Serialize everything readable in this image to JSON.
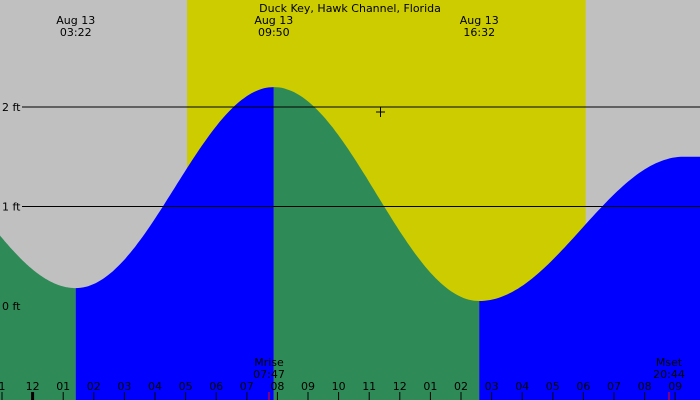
{
  "chart_data": {
    "type": "area",
    "title": "Duck Key, Hawk Channel, Florida",
    "xlabel": "",
    "ylabel": "",
    "xlim": [
      0.9,
      9.9
    ],
    "ylim": [
      -1.0,
      3.0
    ],
    "grid": true,
    "y_ticks": [
      {
        "value": 0,
        "label": "0 ft"
      },
      {
        "value": 1,
        "label": "1 ft"
      },
      {
        "value": 2,
        "label": "2 ft"
      }
    ],
    "hour_ticks": [
      {
        "value": 1,
        "label": "1"
      },
      {
        "value": 2,
        "label": "12"
      },
      {
        "value": 3,
        "label": "01"
      },
      {
        "value": 4,
        "label": "02"
      },
      {
        "value": 5,
        "label": "03"
      },
      {
        "value": 6,
        "label": "04"
      },
      {
        "value": 7,
        "label": "05"
      },
      {
        "value": 8,
        "label": "06"
      },
      {
        "value": 9,
        "label": "07"
      },
      {
        "value": 10,
        "label": "08"
      },
      {
        "value": 11,
        "label": "09"
      },
      {
        "value": 12,
        "label": "10"
      },
      {
        "value": 13,
        "label": "11"
      },
      {
        "value": 14,
        "label": "12"
      },
      {
        "value": 15,
        "label": "01"
      },
      {
        "value": 16,
        "label": "02"
      },
      {
        "value": 17,
        "label": "03"
      },
      {
        "value": 18,
        "label": "04"
      },
      {
        "value": 19,
        "label": "05"
      },
      {
        "value": 20,
        "label": "06"
      },
      {
        "value": 21,
        "label": "07"
      },
      {
        "value": 22,
        "label": "08"
      },
      {
        "value": 23,
        "label": "09"
      }
    ],
    "tide_events": [
      {
        "type": "low",
        "date": "Aug 13",
        "time": "03:22",
        "hour": 3.37,
        "height": 0.18
      },
      {
        "type": "high",
        "date": "Aug 13",
        "time": "09:50",
        "hour": 9.83,
        "height": 2.2
      },
      {
        "type": "low",
        "date": "Aug 13",
        "time": "16:32",
        "hour": 16.53,
        "height": 0.05
      },
      {
        "type": "high",
        "hour": 23.2,
        "height": 1.5
      }
    ],
    "tide_start": {
      "hour": 0.9,
      "height": 1.28
    },
    "event_labels": [
      {
        "date": "Aug 13",
        "time": "03:22",
        "hour": 3.37
      },
      {
        "date": "Aug 13",
        "time": "09:50",
        "hour": 9.83
      },
      {
        "date": "Aug 13",
        "time": "16:32",
        "hour": 16.53
      }
    ],
    "moon": [
      {
        "label": "Mrise",
        "time": "07:47",
        "hour": 7.78
      },
      {
        "label": "Mset",
        "time": "20:44",
        "hour": 20.73
      }
    ],
    "daylight": {
      "sunrise_hour": 7.0,
      "sunset_hour": 20.0
    },
    "colors": {
      "night": "#c0c0c0",
      "day": "#cccc00",
      "falling": "#2e8b57",
      "rising": "#0000ff",
      "gridline": "#000000",
      "moon_tick": "#ff0000"
    }
  }
}
